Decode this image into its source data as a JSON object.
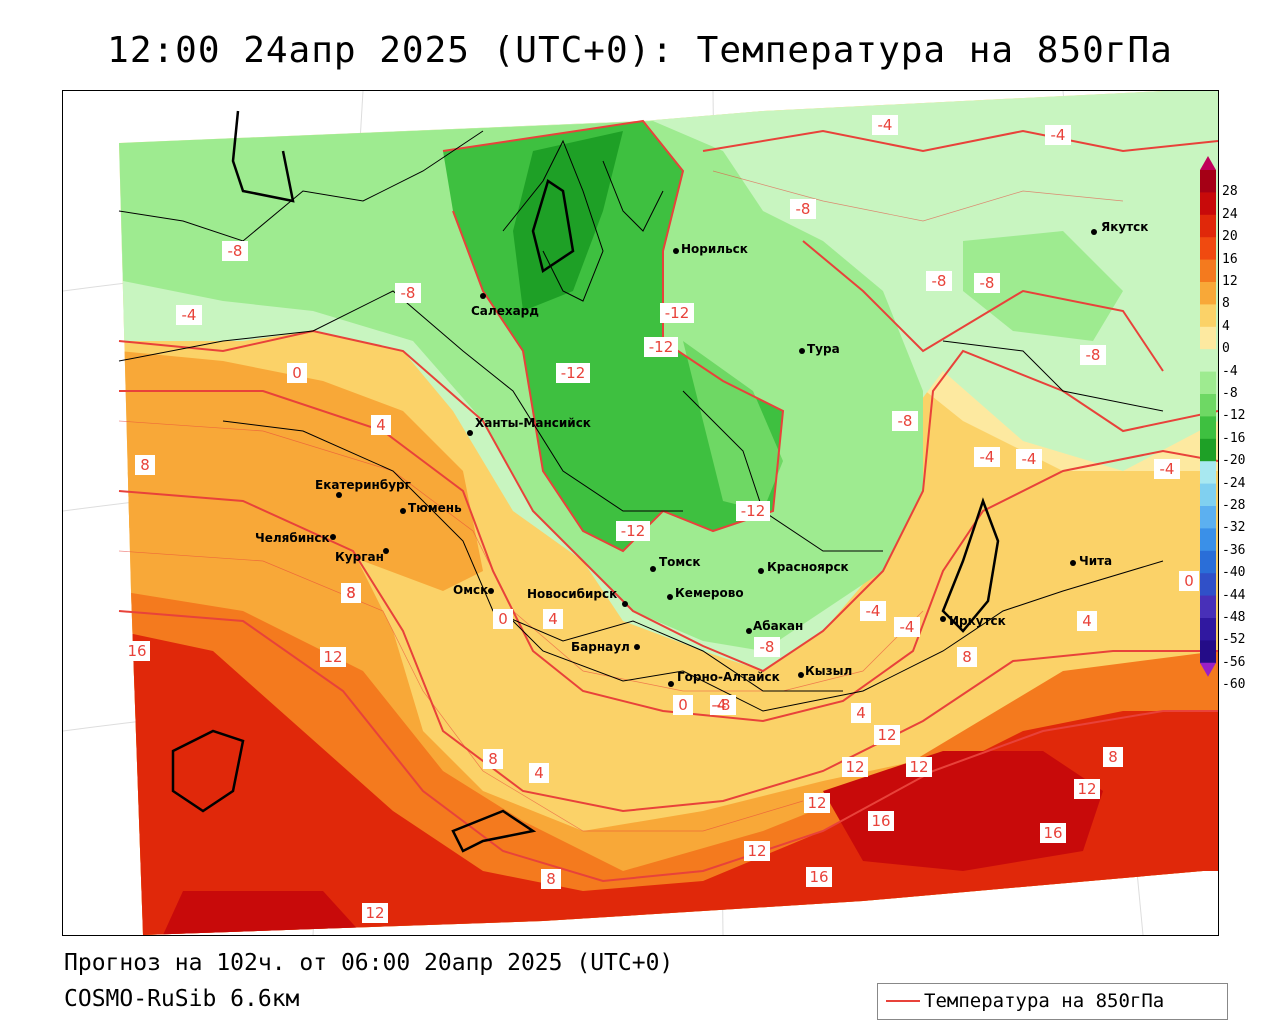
{
  "title": "12:00 24апр 2025 (UTC+0): Температура на 850гПа",
  "footer": {
    "forecast": "Прогноз на 102ч. от 06:00 20апр 2025 (UTC+0)",
    "model": "COSMO-RuSib 6.6км"
  },
  "legend": {
    "label": "Температура на 850гПа",
    "line_color": "#e8423a"
  },
  "colorbar": {
    "labels": [
      "28",
      "24",
      "20",
      "16",
      "12",
      "8",
      "4",
      "0",
      "-4",
      "-8",
      "-12",
      "-16",
      "-20",
      "-24",
      "-28",
      "-32",
      "-36",
      "-40",
      "-44",
      "-48",
      "-52",
      "-56",
      "-60"
    ],
    "colors": [
      "#c0005a",
      "#a50015",
      "#c80a0a",
      "#e0280a",
      "#f04a10",
      "#f47a1e",
      "#f8a838",
      "#fbd268",
      "#fde9a0",
      "#c8f5c0",
      "#9eeb90",
      "#6ed864",
      "#3ec040",
      "#1ea026",
      "#a8e8f0",
      "#80d0f0",
      "#5cb0f0",
      "#3a90e8",
      "#2a6ed8",
      "#3050c8",
      "#4830b8",
      "#3018a0",
      "#240c88",
      "#9a20c8"
    ]
  },
  "cities": [
    {
      "name": "Якутск"
    },
    {
      "name": "Норильск"
    },
    {
      "name": "Салехард"
    },
    {
      "name": "Тура"
    },
    {
      "name": "Ханты-Мансийск"
    },
    {
      "name": "Екатеринбург"
    },
    {
      "name": "Тюмень"
    },
    {
      "name": "Челябинск"
    },
    {
      "name": "Курган"
    },
    {
      "name": "Томск"
    },
    {
      "name": "Красноярск"
    },
    {
      "name": "Омск"
    },
    {
      "name": "Новосибирск"
    },
    {
      "name": "Кемерово"
    },
    {
      "name": "Абакан"
    },
    {
      "name": "Барнаул"
    },
    {
      "name": "Иркутск"
    },
    {
      "name": "Чита"
    },
    {
      "name": "Горно-Алтайск"
    },
    {
      "name": "Кызыл"
    }
  ],
  "isotherm_labels": [
    "-4",
    "-4",
    "-8",
    "-8",
    "-8",
    "-8",
    "-8",
    "-8",
    "-8",
    "-4",
    "-12",
    "-12",
    "-12",
    "-12",
    "-12",
    "-8",
    "-4",
    "-4",
    "-4",
    "0",
    "4",
    "8",
    "8",
    "8",
    "0",
    "4",
    "4",
    "16",
    "12",
    "8",
    "4",
    "0",
    "-4",
    "-8",
    "-4",
    "4",
    "8",
    "12",
    "12",
    "12",
    "12",
    "16",
    "16",
    "12",
    "8",
    "12",
    "16",
    "8",
    "12",
    "0",
    "-4"
  ]
}
